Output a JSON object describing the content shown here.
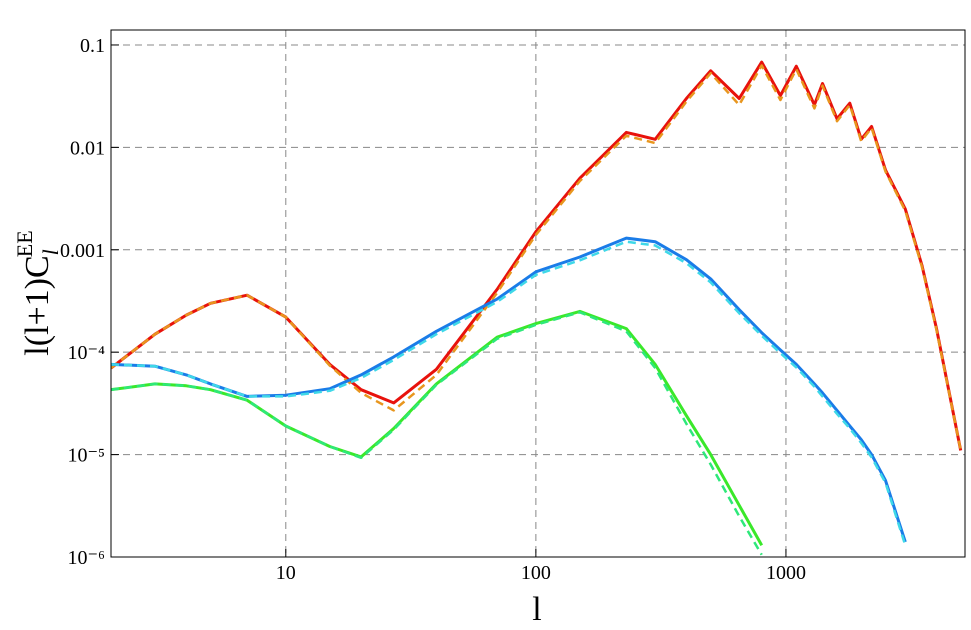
{
  "chart_data": {
    "type": "line",
    "xlabel": "l",
    "ylabel": {
      "main": "l(l+1)C",
      "sub": "l",
      "sup": "EE"
    },
    "xscale": "log",
    "yscale": "log",
    "grid": true,
    "xlim": [
      2,
      5200
    ],
    "ylim": [
      1e-06,
      0.14
    ],
    "xticks": [
      10,
      100,
      1000
    ],
    "yticks": [
      {
        "value": 1e-06,
        "label": "10⁻⁶"
      },
      {
        "value": 1e-05,
        "label": "10⁻⁵"
      },
      {
        "value": 0.0001,
        "label": "10⁻⁴"
      },
      0.001,
      0.01,
      0.1
    ],
    "x": [
      2,
      3,
      4,
      5,
      7,
      10,
      15,
      20,
      27,
      40,
      70,
      100,
      150,
      230,
      300,
      400,
      500,
      650,
      800,
      950,
      1100,
      1300,
      1400,
      1600,
      1800,
      2000,
      2200,
      2500,
      3000,
      3500,
      4000,
      5000
    ],
    "series": [
      {
        "color": "#e8120c",
        "dashed": false,
        "values": [
          7e-05,
          0.00015,
          0.00023,
          0.0003,
          0.00036,
          0.00022,
          7.6e-05,
          4.3e-05,
          3.2e-05,
          6.8e-05,
          0.00041,
          0.0015,
          0.005,
          0.014,
          0.012,
          0.03,
          0.056,
          0.03,
          0.068,
          0.032,
          0.062,
          0.026,
          0.042,
          0.019,
          0.027,
          0.012,
          0.016,
          0.006,
          0.0025,
          0.0007,
          0.00017,
          1.1e-05
        ]
      },
      {
        "color": "#e8961e",
        "dashed": true,
        "values": [
          7e-05,
          0.00015,
          0.00023,
          0.0003,
          0.00036,
          0.00022,
          7.4e-05,
          4e-05,
          2.7e-05,
          6e-05,
          0.00038,
          0.0014,
          0.0047,
          0.013,
          0.011,
          0.028,
          0.053,
          0.026,
          0.063,
          0.029,
          0.058,
          0.024,
          0.04,
          0.018,
          0.026,
          0.0115,
          0.0155,
          0.0058,
          0.0024,
          0.00068,
          0.000165,
          1.1e-05
        ]
      },
      {
        "color": "#1a7ce8",
        "dashed": false,
        "values": [
          7.6e-05,
          7.3e-05,
          6e-05,
          4.9e-05,
          3.7e-05,
          3.8e-05,
          4.4e-05,
          6e-05,
          9e-05,
          0.00016,
          0.00033,
          0.00061,
          0.00085,
          0.0013,
          0.0012,
          0.0008,
          0.00052,
          0.00026,
          0.000155,
          0.000105,
          7.6e-05,
          4.9e-05,
          4e-05,
          2.7e-05,
          1.9e-05,
          1.4e-05,
          1e-05,
          5.6e-06,
          1.4e-06,
          null,
          null,
          null
        ]
      },
      {
        "color": "#3fd8e8",
        "dashed": true,
        "values": [
          7.6e-05,
          7.3e-05,
          6e-05,
          4.9e-05,
          3.7e-05,
          3.7e-05,
          4.2e-05,
          5.6e-05,
          8.4e-05,
          0.00015,
          0.00031,
          0.00057,
          0.00079,
          0.0012,
          0.0011,
          0.00074,
          0.00048,
          0.00024,
          0.000145,
          9.8e-05,
          7.1e-05,
          4.6e-05,
          3.7e-05,
          2.5e-05,
          1.8e-05,
          1.3e-05,
          9.4e-06,
          5.3e-06,
          1.3e-06,
          null,
          null,
          null
        ]
      },
      {
        "color": "#3ae82a",
        "dashed": false,
        "values": [
          4.3e-05,
          4.9e-05,
          4.7e-05,
          4.3e-05,
          3.4e-05,
          1.9e-05,
          1.2e-05,
          9.5e-06,
          1.8e-05,
          4.9e-05,
          0.00014,
          0.00019,
          0.00025,
          0.00017,
          7.6e-05,
          2.4e-05,
          1e-05,
          3.2e-06,
          1.3e-06,
          null,
          null,
          null,
          null,
          null,
          null,
          null,
          null,
          null,
          null,
          null,
          null,
          null
        ]
      },
      {
        "color": "#2ee87a",
        "dashed": true,
        "values": [
          4.3e-05,
          4.9e-05,
          4.7e-05,
          4.3e-05,
          3.4e-05,
          1.9e-05,
          1.2e-05,
          9.3e-06,
          1.75e-05,
          4.8e-05,
          0.000135,
          0.000185,
          0.000245,
          0.00016,
          7e-05,
          2e-05,
          8e-06,
          2.5e-06,
          1.05e-06,
          null,
          null,
          null,
          null,
          null,
          null,
          null,
          null,
          null,
          null,
          null,
          null,
          null
        ]
      }
    ]
  }
}
